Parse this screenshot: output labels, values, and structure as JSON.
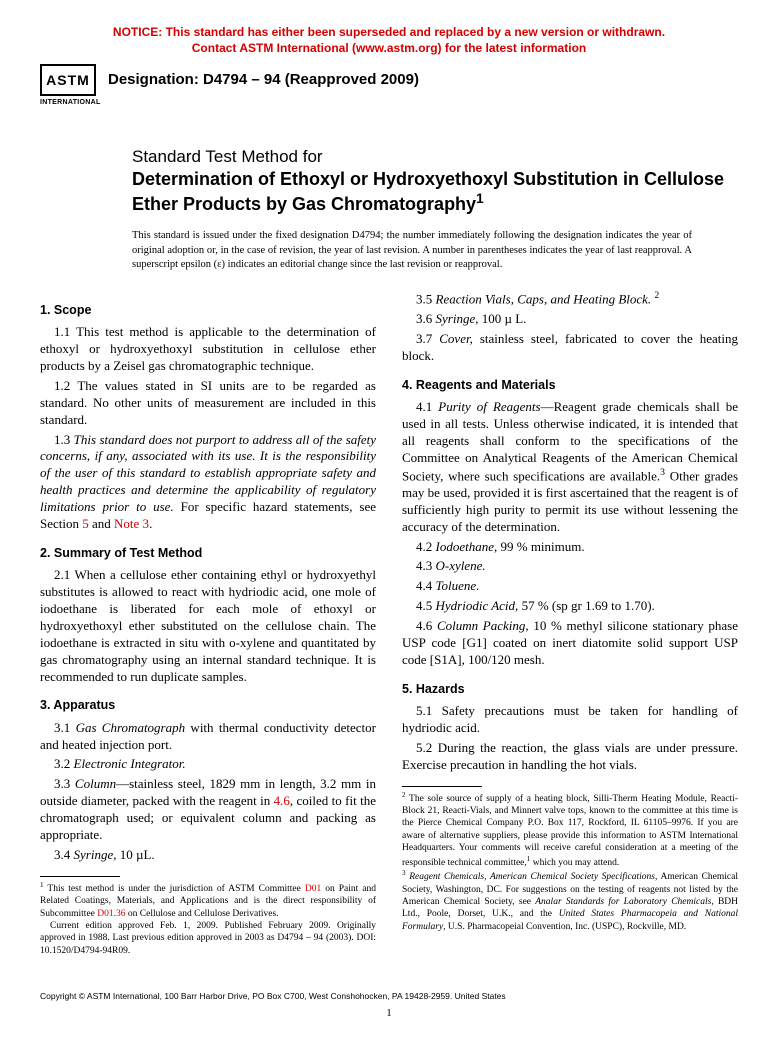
{
  "notice_l1": "NOTICE: This standard has either been superseded and replaced by a new version or withdrawn.",
  "notice_l2": "Contact ASTM International (www.astm.org) for the latest information",
  "logo": "ASTM",
  "logo_sub": "INTERNATIONAL",
  "desig": "Designation: D4794 – 94 (Reapproved 2009)",
  "title_pre": "Standard Test Method for",
  "title_main": "Determination of Ethoxyl or Hydroxyethoxyl Substitution in Cellulose Ether Products by Gas Chromatography",
  "title_sup": "1",
  "issued": "This standard is issued under the fixed designation D4794; the number immediately following the designation indicates the year of original adoption or, in the case of revision, the year of last revision. A number in parentheses indicates the year of last reapproval. A superscript epsilon (ε) indicates an editorial change since the last revision or reapproval.",
  "h1": "1. Scope",
  "p11": "1.1 This test method is applicable to the determination of ethoxyl or hydroxyethoxyl substitution in cellulose ether products by a Zeisel gas chromatographic technique.",
  "p12": "1.2 The values stated in SI units are to be regarded as standard. No other units of measurement are included in this standard.",
  "p13a": "1.3 ",
  "p13b": "This standard does not purport to address all of the safety concerns, if any, associated with its use. It is the responsibility of the user of this standard to establish appropriate safety and health practices and determine the applicability of regulatory limitations prior to use.",
  "p13c": " For specific hazard statements, see Section ",
  "p13d": "5",
  "p13e": " and ",
  "p13f": "Note 3",
  "p13g": ".",
  "h2": "2. Summary of Test Method",
  "p21": "2.1 When a cellulose ether containing ethyl or hydroxyethyl substitutes is allowed to react with hydriodic acid, one mole of iodoethane is liberated for each mole of ethoxyl or hydroxyethoxyl ether substituted on the cellulose chain. The iodoethane is extracted in situ with o-xylene and quantitated by gas chromatography using an internal standard technique. It is recommended to run duplicate samples.",
  "h3": "3. Apparatus",
  "p31a": "3.1 ",
  "p31b": "Gas Chromatograph",
  "p31c": " with thermal conductivity detector and heated injection port.",
  "p32a": "3.2 ",
  "p32b": "Electronic Integrator.",
  "p33a": "3.3 ",
  "p33b": "Column",
  "p33c": "—stainless steel, 1829 mm in length, 3.2 mm in outside diameter, packed with the reagent in ",
  "p33d": "4.6",
  "p33e": ", coiled to fit the chromatograph used; or equivalent column and packing as appropriate.",
  "p34a": "3.4 ",
  "p34b": "Syringe,",
  "p34c": " 10 µL.",
  "p35a": "3.5 ",
  "p35b": "Reaction Vials, Caps, and Heating Block.",
  "p35c": "2",
  "p36a": "3.6 ",
  "p36b": "Syringe,",
  "p36c": " 100 µ L.",
  "p37a": "3.7 ",
  "p37b": "Cover,",
  "p37c": " stainless steel, fabricated to cover the heating block.",
  "h4": "4. Reagents and Materials",
  "p41a": "4.1 ",
  "p41b": "Purity of Reagents",
  "p41c": "—Reagent grade chemicals shall be used in all tests. Unless otherwise indicated, it is intended that all reagents shall conform to the specifications of the Committee on Analytical Reagents of the American Chemical Society, where such specifications are available.",
  "p41d": "3",
  "p41e": " Other grades may be used, provided it is first ascertained that the reagent is of sufficiently high purity to permit its use without lessening the accuracy of the determination.",
  "p42a": "4.2 ",
  "p42b": "Iodoethane,",
  "p42c": " 99 % minimum.",
  "p43a": "4.3 ",
  "p43b": "O-xylene.",
  "p44a": "4.4 ",
  "p44b": "Toluene.",
  "p45a": "4.5 ",
  "p45b": "Hydriodic Acid,",
  "p45c": " 57 % (sp gr 1.69 to 1.70).",
  "p46a": "4.6 ",
  "p46b": "Column Packing,",
  "p46c": " 10 % methyl silicone stationary phase USP code [G1] coated on inert diatomite solid support USP code [S1A], 100/120 mesh.",
  "h5": "5. Hazards",
  "p51": "5.1 Safety precautions must be taken for handling of hydriodic acid.",
  "p52": "5.2 During the reaction, the glass vials are under pressure. Exercise precaution in handling the hot vials.",
  "fn1a": "1",
  "fn1b": " This test method is under the jurisdiction of ASTM Committee ",
  "fn1c": "D01",
  "fn1d": " on Paint and Related Coatings, Materials, and Applications and is the direct responsibility of Subcommittee ",
  "fn1e": "D01.36",
  "fn1f": " on Cellulose and Cellulose Derivatives.",
  "fn1g": "Current edition approved Feb. 1, 2009. Published February 2009. Originally approved in 1988. Last previous edition approved in 2003 as D4794 – 94 (2003). DOI: 10.1520/D4794-94R09.",
  "fn2a": "2",
  "fn2b": " The sole source of supply of a heating block, Silli-Therm Heating Module, Reacti-Block 21, Reacti-Vials, and Minnert valve tops, known to the committee at this time is the Pierce Chemical Company P.O. Box 117, Rockford, IL 61105–9976. If you are aware of alternative suppliers, please provide this information to ASTM International Headquarters. Your comments will receive careful consideration at a meeting of the responsible technical committee,",
  "fn2c": "1",
  "fn2d": " which you may attend.",
  "fn3a": "3",
  "fn3b": "Reagent Chemicals, American Chemical Society Specifications",
  "fn3c": ", American Chemical Society, Washington, DC. For suggestions on the testing of reagents not listed by the American Chemical Society, see ",
  "fn3d": "Analar Standards for Laboratory Chemicals",
  "fn3e": ", BDH Ltd., Poole, Dorset, U.K., and the ",
  "fn3f": "United States Pharmacopeia and National Formulary",
  "fn3g": ", U.S. Pharmacopeial Convention, Inc. (USPC), Rockville, MD.",
  "copy": "Copyright © ASTM International, 100 Barr Harbor Drive, PO Box C700, West Conshohocken, PA 19428-2959. United States",
  "pnum": "1"
}
